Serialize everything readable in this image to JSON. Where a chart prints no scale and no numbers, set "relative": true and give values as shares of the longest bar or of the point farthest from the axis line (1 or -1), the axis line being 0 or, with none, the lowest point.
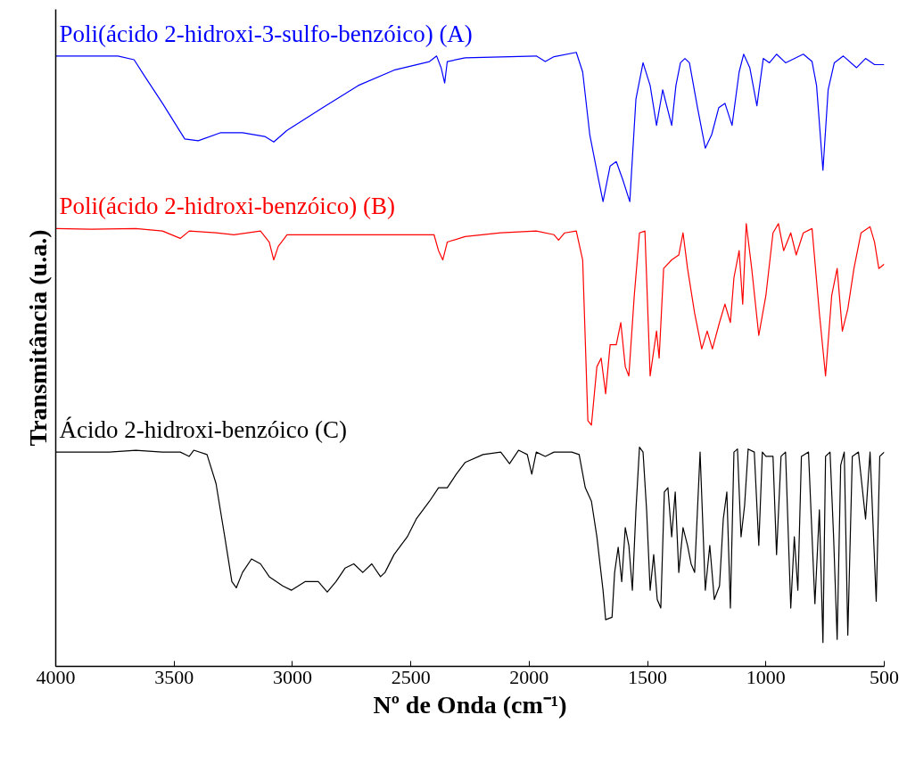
{
  "chart_data": {
    "type": "line",
    "relative": true,
    "xlabel": "Nº de Onda (cm⁻¹)",
    "ylabel": "Transmitância (u.a.)",
    "xlim": [
      4000,
      500
    ],
    "xticks": [
      4000,
      3500,
      3000,
      2500,
      2000,
      1500,
      1000,
      500
    ],
    "series": [
      {
        "name": "Poli(ácido 2-hidroxi-3-sulfo-benzóico) (A)",
        "color": "#0000ff",
        "x": [
          4000,
          3737,
          3669,
          3624,
          3549,
          3455,
          3398,
          3305,
          3211,
          3117,
          3079,
          3023,
          2872,
          2722,
          2571,
          2421,
          2391,
          2372,
          2357,
          2346,
          2271,
          1970,
          1932,
          1895,
          1801,
          1774,
          1744,
          1707,
          1688,
          1658,
          1632,
          1605,
          1575,
          1549,
          1519,
          1489,
          1462,
          1436,
          1398,
          1380,
          1361,
          1342,
          1323,
          1289,
          1256,
          1229,
          1199,
          1173,
          1143,
          1113,
          1094,
          1068,
          1038,
          1011,
          985,
          955,
          917,
          842,
          805,
          786,
          759,
          737,
          711,
          673,
          617,
          579,
          541,
          500
        ],
        "values": [
          0.994,
          0.994,
          0.988,
          0.961,
          0.917,
          0.859,
          0.856,
          0.869,
          0.869,
          0.863,
          0.854,
          0.873,
          0.91,
          0.946,
          0.971,
          0.985,
          0.994,
          0.975,
          0.95,
          0.985,
          0.991,
          0.994,
          0.985,
          0.993,
          1.0,
          0.968,
          0.866,
          0.793,
          0.757,
          0.815,
          0.822,
          0.793,
          0.757,
          0.924,
          0.983,
          0.946,
          0.881,
          0.939,
          0.881,
          0.946,
          0.983,
          0.99,
          0.983,
          0.91,
          0.844,
          0.866,
          0.91,
          0.917,
          0.881,
          0.968,
          0.997,
          0.975,
          0.913,
          0.99,
          0.983,
          0.997,
          0.983,
          0.997,
          0.985,
          0.946,
          0.808,
          0.939,
          0.983,
          0.994,
          0.975,
          0.99,
          0.98,
          0.98
        ]
      },
      {
        "name": "Poli(ácido 2-hidroxi-benzóico) (B)",
        "color": "#ff0000",
        "x": [
          4000,
          3850,
          3662,
          3549,
          3474,
          3436,
          3323,
          3248,
          3135,
          3098,
          3079,
          3060,
          3023,
          2872,
          2722,
          2534,
          2402,
          2383,
          2365,
          2346,
          2271,
          2120,
          1970,
          1895,
          1876,
          1850,
          1801,
          1774,
          1752,
          1737,
          1714,
          1696,
          1677,
          1658,
          1632,
          1613,
          1594,
          1579,
          1556,
          1534,
          1511,
          1489,
          1462,
          1451,
          1432,
          1398,
          1368,
          1350,
          1331,
          1301,
          1271,
          1248,
          1226,
          1196,
          1173,
          1150,
          1135,
          1113,
          1098,
          1083,
          1060,
          1030,
          1000,
          970,
          947,
          925,
          895,
          872,
          842,
          805,
          774,
          748,
          722,
          699,
          677,
          654,
          628,
          598,
          560,
          541,
          523,
          500
        ],
        "values": [
          0.713,
          0.712,
          0.713,
          0.709,
          0.697,
          0.709,
          0.706,
          0.703,
          0.709,
          0.691,
          0.662,
          0.684,
          0.703,
          0.703,
          0.703,
          0.703,
          0.703,
          0.677,
          0.662,
          0.691,
          0.7,
          0.706,
          0.709,
          0.703,
          0.694,
          0.706,
          0.709,
          0.662,
          0.4,
          0.393,
          0.488,
          0.502,
          0.444,
          0.524,
          0.524,
          0.56,
          0.488,
          0.473,
          0.604,
          0.706,
          0.709,
          0.473,
          0.546,
          0.502,
          0.648,
          0.662,
          0.67,
          0.706,
          0.648,
          0.575,
          0.517,
          0.546,
          0.517,
          0.56,
          0.59,
          0.56,
          0.633,
          0.677,
          0.59,
          0.721,
          0.648,
          0.539,
          0.604,
          0.706,
          0.721,
          0.677,
          0.706,
          0.67,
          0.706,
          0.713,
          0.575,
          0.473,
          0.604,
          0.648,
          0.546,
          0.582,
          0.648,
          0.706,
          0.716,
          0.691,
          0.648,
          0.655
        ]
      },
      {
        "name": "Ácido 2-hidroxi-benzóico (C)",
        "color": "#000000",
        "x": [
          4000,
          3774,
          3662,
          3549,
          3474,
          3436,
          3417,
          3361,
          3323,
          3286,
          3256,
          3237,
          3211,
          3173,
          3135,
          3098,
          3041,
          3004,
          2947,
          2891,
          2853,
          2816,
          2778,
          2741,
          2703,
          2665,
          2628,
          2609,
          2571,
          2515,
          2477,
          2421,
          2383,
          2346,
          2308,
          2271,
          2195,
          2120,
          2083,
          2045,
          2008,
          1989,
          1970,
          1932,
          1895,
          1820,
          1789,
          1763,
          1737,
          1714,
          1688,
          1677,
          1650,
          1639,
          1624,
          1609,
          1594,
          1579,
          1564,
          1549,
          1534,
          1519,
          1504,
          1489,
          1474,
          1459,
          1444,
          1429,
          1414,
          1398,
          1383,
          1368,
          1350,
          1331,
          1316,
          1301,
          1278,
          1256,
          1237,
          1218,
          1196,
          1180,
          1165,
          1150,
          1135,
          1120,
          1105,
          1090,
          1075,
          1049,
          1030,
          1015,
          1000,
          970,
          955,
          936,
          917,
          895,
          880,
          865,
          850,
          820,
          793,
          774,
          759,
          748,
          729,
          714,
          699,
          684,
          669,
          654,
          635,
          609,
          579,
          560,
          534,
          519,
          500
        ],
        "values": [
          0.349,
          0.349,
          0.352,
          0.349,
          0.349,
          0.342,
          0.352,
          0.345,
          0.298,
          0.211,
          0.138,
          0.128,
          0.153,
          0.175,
          0.167,
          0.146,
          0.131,
          0.124,
          0.138,
          0.138,
          0.121,
          0.138,
          0.16,
          0.167,
          0.153,
          0.167,
          0.146,
          0.153,
          0.182,
          0.211,
          0.24,
          0.269,
          0.291,
          0.291,
          0.313,
          0.332,
          0.345,
          0.349,
          0.33,
          0.352,
          0.345,
          0.313,
          0.349,
          0.342,
          0.349,
          0.349,
          0.345,
          0.291,
          0.269,
          0.211,
          0.124,
          0.076,
          0.08,
          0.153,
          0.194,
          0.138,
          0.226,
          0.197,
          0.124,
          0.255,
          0.357,
          0.349,
          0.255,
          0.124,
          0.182,
          0.109,
          0.095,
          0.284,
          0.291,
          0.211,
          0.284,
          0.153,
          0.226,
          0.197,
          0.167,
          0.153,
          0.349,
          0.124,
          0.197,
          0.109,
          0.131,
          0.24,
          0.284,
          0.095,
          0.349,
          0.354,
          0.211,
          0.262,
          0.354,
          0.349,
          0.197,
          0.349,
          0.342,
          0.342,
          0.182,
          0.342,
          0.349,
          0.095,
          0.211,
          0.124,
          0.342,
          0.349,
          0.102,
          0.255,
          0.039,
          0.342,
          0.349,
          0.211,
          0.044,
          0.328,
          0.349,
          0.051,
          0.342,
          0.349,
          0.24,
          0.349,
          0.106,
          0.342,
          0.349
        ]
      }
    ]
  }
}
